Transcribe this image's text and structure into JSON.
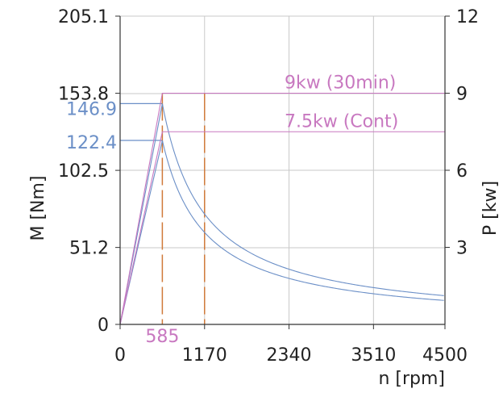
{
  "chart_data": {
    "type": "line",
    "xlabel": "n [rpm]",
    "ylabel_left": "M [Nm]",
    "ylabel_right": "P [kw]",
    "x_range": [
      0,
      4500
    ],
    "y_left_range": [
      0,
      205.1
    ],
    "y_right_range": [
      0,
      12
    ],
    "x_ticks": [
      "0",
      "1170",
      "2340",
      "3510",
      "4500"
    ],
    "x_tick_values": [
      0,
      1170,
      2340,
      3510,
      4500
    ],
    "y_left_ticks": [
      "0",
      "51.2",
      "102.5",
      "153.8",
      "205.1"
    ],
    "y_left_tick_values": [
      0,
      51.2,
      102.5,
      153.8,
      205.1
    ],
    "y_right_ticks": [
      "3",
      "6",
      "9",
      "12"
    ],
    "y_right_tick_values": [
      3,
      6,
      9,
      12
    ],
    "grid": true,
    "annotations": [
      {
        "text": "9kw (30min)",
        "color": "#c878c0"
      },
      {
        "text": "7.5kw (Cont)",
        "color": "#c878c0"
      },
      {
        "text": "146.9",
        "color": "#6b8fc7"
      },
      {
        "text": "122.4",
        "color": "#6b8fc7"
      },
      {
        "text": "585",
        "color": "#c878c0"
      }
    ],
    "series": [
      {
        "axis": "left",
        "color": "#6b8fc7",
        "x": [
          0,
          585,
          700,
          900,
          1170,
          1500,
          2000,
          2500,
          3000,
          3500,
          4000,
          4500
        ],
        "y": [
          0,
          146.9,
          122.8,
          95.5,
          73.5,
          57.3,
          43.0,
          34.4,
          28.6,
          24.6,
          21.5,
          19.1
        ]
      },
      {
        "axis": "left",
        "color": "#6b8fc7",
        "x": [
          0,
          585,
          700,
          900,
          1170,
          1500,
          2000,
          2500,
          3000,
          3500,
          4000,
          4500
        ],
        "y": [
          0,
          122.4,
          102.3,
          79.6,
          61.2,
          47.7,
          35.8,
          28.7,
          23.9,
          20.5,
          17.9,
          15.9
        ]
      },
      {
        "axis": "right",
        "color": "#c878c0",
        "x": [
          0,
          585,
          4500
        ],
        "y": [
          0,
          9,
          9
        ]
      },
      {
        "axis": "right",
        "color": "#c878c0",
        "x": [
          0,
          585,
          4500
        ],
        "y": [
          0,
          7.5,
          7.5
        ]
      }
    ],
    "ref_lines": [
      {
        "axis": "left",
        "y": 146.9,
        "x_from": 0,
        "x_to": 585,
        "color": "#6b8fc7"
      },
      {
        "axis": "left",
        "y": 122.4,
        "x_from": 0,
        "x_to": 585,
        "color": "#6b8fc7"
      }
    ],
    "vlines": [
      {
        "x": 585,
        "color": "#d07a3a",
        "dashed": true
      },
      {
        "x": 1170,
        "color": "#d07a3a",
        "dashed": true
      }
    ],
    "colors": {
      "torque": "#6b8fc7",
      "power": "#c878c0",
      "marker": "#d07a3a",
      "grid": "#c8c8c8",
      "axis": "#333333"
    }
  }
}
